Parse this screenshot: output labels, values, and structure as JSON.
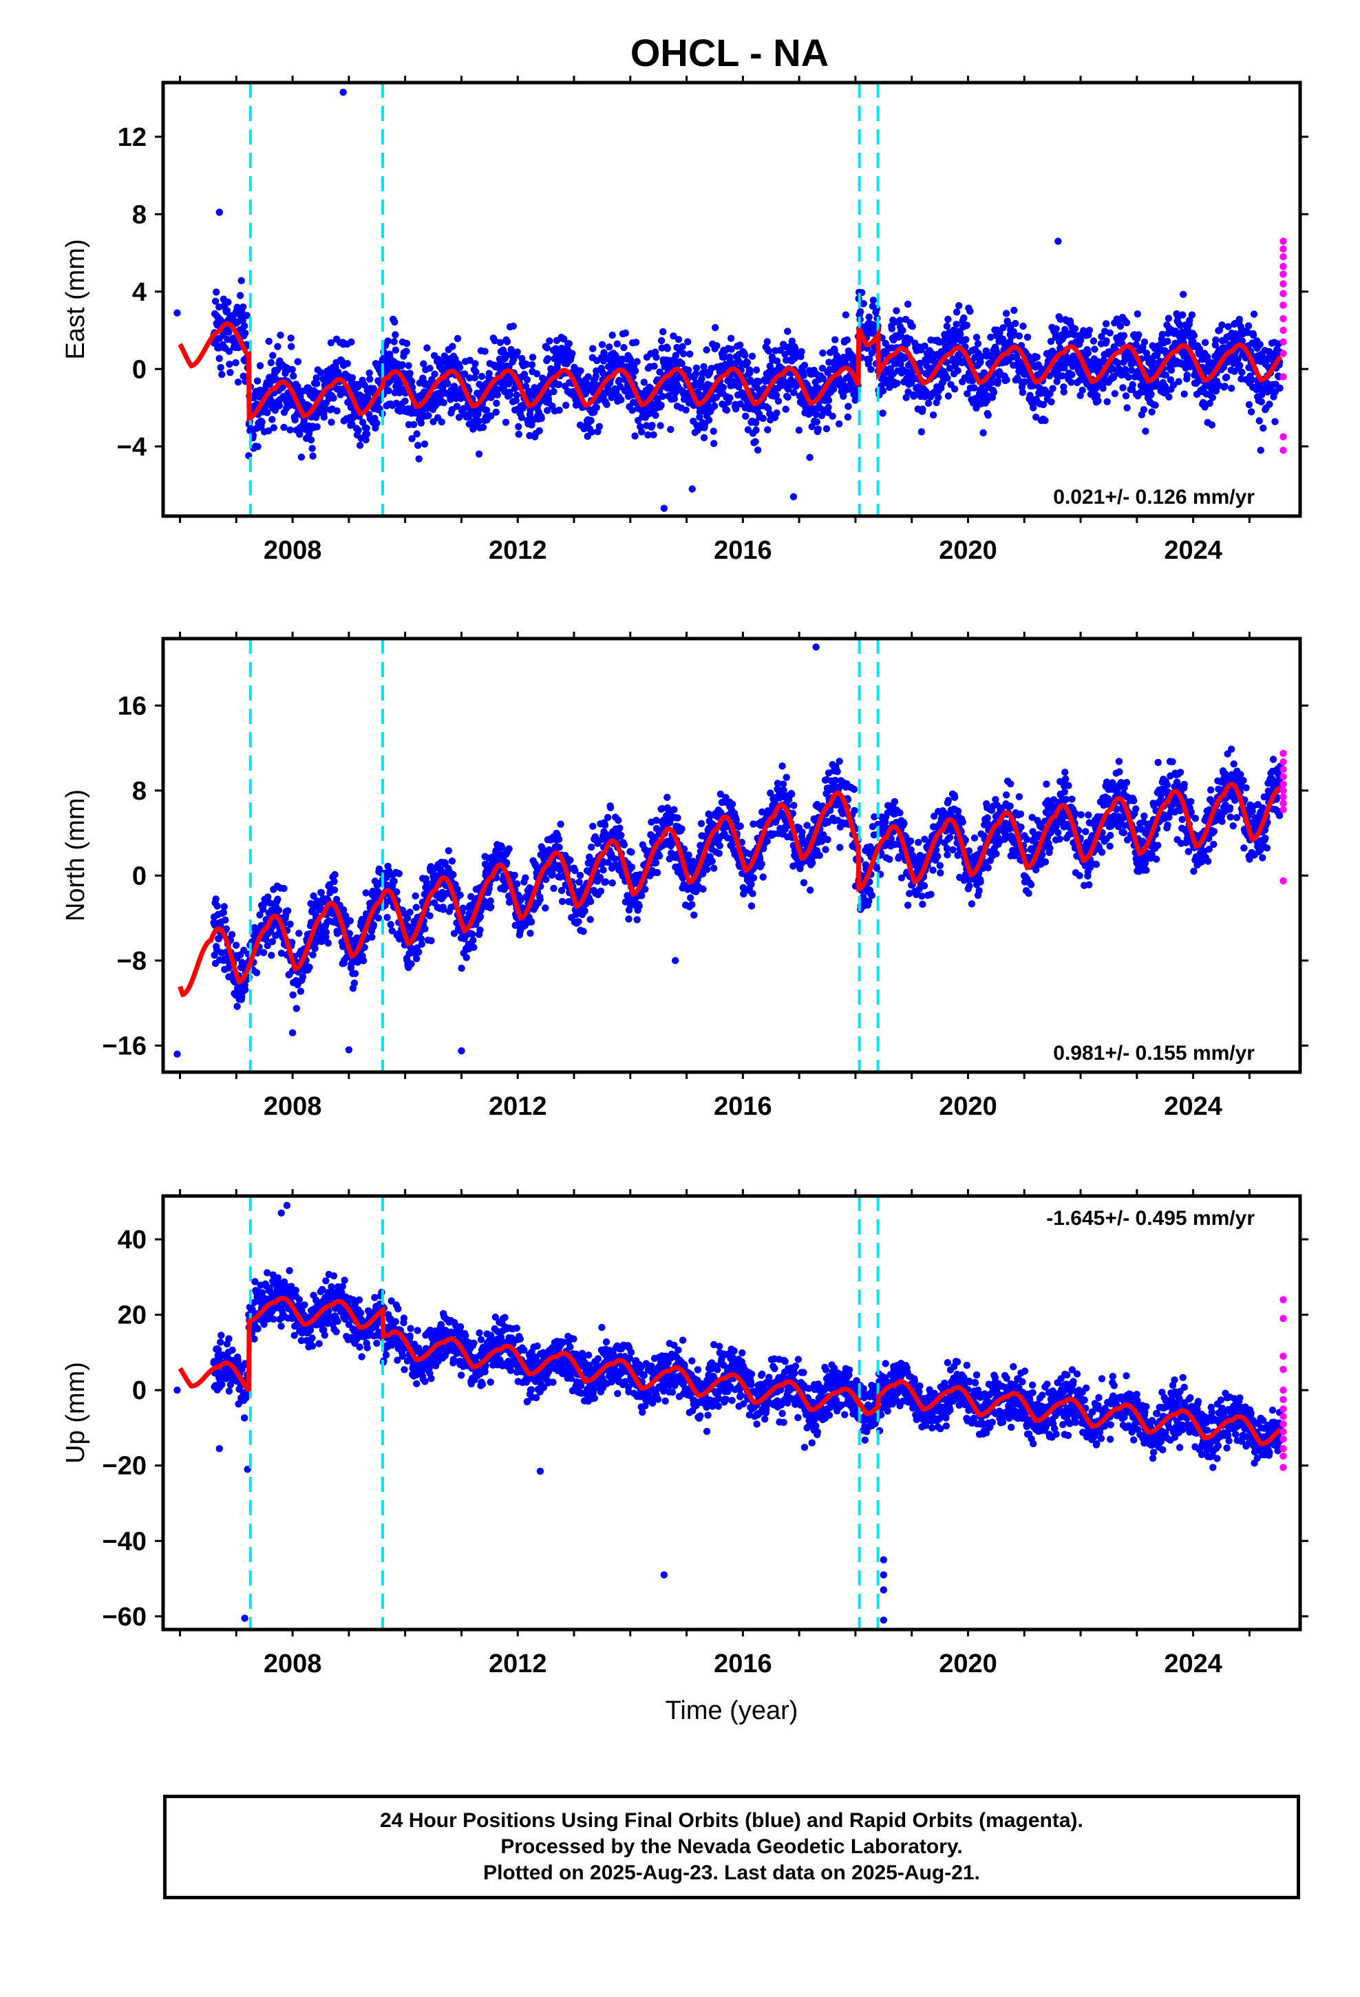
{
  "chart_data": [
    {
      "type": "scatter",
      "title": "OHCL - NA",
      "ylabel": "East (mm)",
      "xlabel": "",
      "xlim": [
        2005.7,
        2025.9
      ],
      "ylim": [
        -7.6,
        14.8
      ],
      "yticks": [
        -4,
        0,
        4,
        8,
        12
      ],
      "xticks": [
        2008,
        2012,
        2016,
        2020,
        2024
      ],
      "rate_label": "0.021+/- 0.126 mm/yr",
      "rate_position": "bottom-right",
      "model": {
        "segments": [
          [
            2006.0,
            2007.22,
            0.8,
            1.5
          ],
          [
            2007.22,
            2009.6,
            -1.8,
            -1.5
          ],
          [
            2009.6,
            2018.05,
            -1.2,
            -1.0
          ],
          [
            2018.05,
            2018.4,
            2.0,
            2.0
          ],
          [
            2018.4,
            2025.55,
            0.0,
            0.2
          ]
        ],
        "amplitude": 1.5,
        "phase_year": 0.7
      },
      "noise": 1.2,
      "outliers": [
        {
          "x": 2008.9,
          "y": 14.3
        },
        {
          "x": 2006.7,
          "y": 8.1
        },
        {
          "x": 2014.6,
          "y": -7.2
        },
        {
          "x": 2015.1,
          "y": -6.2
        },
        {
          "x": 2016.9,
          "y": -6.6
        },
        {
          "x": 2021.6,
          "y": 6.6
        },
        {
          "x": 2025.2,
          "y": -4.2
        },
        {
          "x": 2005.95,
          "y": 2.9
        }
      ],
      "offsets": [
        2007.25,
        2009.6,
        2018.07,
        2018.4
      ],
      "rapid": {
        "x": 2025.6,
        "values": [
          6.6,
          6.2,
          5.8,
          5.3,
          4.9,
          4.4,
          3.9,
          3.3,
          2.6,
          2.0,
          1.4,
          0.8,
          -0.4,
          -3.5,
          -4.2
        ]
      },
      "series": [
        {
          "name": "Final Orbits",
          "color": "#0000ff"
        },
        {
          "name": "Rapid Orbits",
          "color": "#ff00ff"
        },
        {
          "name": "",
          "color": "#ff0000"
        }
      ]
    },
    {
      "type": "scatter",
      "title": "",
      "ylabel": "North (mm)",
      "xlabel": "",
      "xlim": [
        2005.7,
        2025.9
      ],
      "ylim": [
        -18.5,
        22.3
      ],
      "yticks": [
        -16,
        -8,
        0,
        8,
        16
      ],
      "xticks": [
        2008,
        2012,
        2016,
        2020,
        2024
      ],
      "rate_label": "0.981+/- 0.155 mm/yr",
      "rate_position": "bottom-right",
      "model": {
        "segments": [
          [
            2006.0,
            2012.0,
            -9.0,
            -1.8
          ],
          [
            2012.0,
            2018.05,
            -1.8,
            5.0
          ],
          [
            2018.05,
            2025.55,
            1.0,
            6.0
          ]
        ],
        "amplitude": 4.5,
        "phase_year": 0.55
      },
      "noise": 1.8,
      "outliers": [
        {
          "x": 2005.95,
          "y": -16.8
        },
        {
          "x": 2009.0,
          "y": -16.4
        },
        {
          "x": 2011.0,
          "y": -16.5
        },
        {
          "x": 2017.3,
          "y": 21.5
        },
        {
          "x": 2014.8,
          "y": -8.0
        },
        {
          "x": 2008.0,
          "y": -14.8
        }
      ],
      "offsets": [
        2007.25,
        2009.6,
        2018.07,
        2018.4
      ],
      "rapid": {
        "x": 2025.6,
        "values": [
          11.5,
          10.7,
          10.0,
          9.3,
          8.6,
          8.0,
          7.4,
          6.8,
          6.2,
          -0.5
        ]
      },
      "series": [
        {
          "name": "Final Orbits",
          "color": "#0000ff"
        },
        {
          "name": "Rapid Orbits",
          "color": "#ff00ff"
        },
        {
          "name": "",
          "color": "#ff0000"
        }
      ]
    },
    {
      "type": "scatter",
      "title": "",
      "ylabel": "Up (mm)",
      "xlabel": "Time (year)",
      "xlim": [
        2005.7,
        2025.9
      ],
      "ylim": [
        -63.5,
        51.5
      ],
      "yticks": [
        -60,
        -40,
        -20,
        0,
        20,
        40
      ],
      "xticks": [
        2008,
        2012,
        2016,
        2020,
        2024
      ],
      "rate_label": "-1.645+/- 0.495 mm/yr",
      "rate_position": "top-right",
      "model": {
        "segments": [
          [
            2006.0,
            2007.22,
            4.0,
            3.0
          ],
          [
            2007.22,
            2009.6,
            21.0,
            19.0
          ],
          [
            2009.6,
            2018.05,
            12.0,
            -4.0
          ],
          [
            2018.05,
            2018.4,
            -3.5,
            -3.5
          ],
          [
            2018.4,
            2025.55,
            -1.0,
            -12.0
          ]
        ],
        "amplitude": 5.5,
        "phase_year": 0.7
      },
      "noise": 4.2,
      "outliers": [
        {
          "x": 2007.15,
          "y": -60.5
        },
        {
          "x": 2018.5,
          "y": -45.0
        },
        {
          "x": 2018.5,
          "y": -49.0
        },
        {
          "x": 2018.5,
          "y": -53.0
        },
        {
          "x": 2018.5,
          "y": -61.0
        },
        {
          "x": 2014.6,
          "y": -49.0
        },
        {
          "x": 2007.2,
          "y": -21.0
        },
        {
          "x": 2006.7,
          "y": -15.5
        },
        {
          "x": 2012.4,
          "y": -21.5
        },
        {
          "x": 2007.8,
          "y": 47.0
        },
        {
          "x": 2007.9,
          "y": 49.0
        },
        {
          "x": 2005.95,
          "y": 0.0
        }
      ],
      "offsets": [
        2007.25,
        2009.6,
        2018.07,
        2018.4
      ],
      "rapid": {
        "x": 2025.6,
        "values": [
          24.0,
          19.0,
          9.0,
          5.5,
          0.0,
          -2.5,
          -5.0,
          -7.0,
          -9.0,
          -11.0,
          -13.0,
          -15.5,
          -17.5,
          -20.5
        ]
      },
      "series": [
        {
          "name": "Final Orbits",
          "color": "#0000ff"
        },
        {
          "name": "Rapid Orbits",
          "color": "#ff00ff"
        },
        {
          "name": "",
          "color": "#ff0000"
        }
      ]
    }
  ],
  "footer": {
    "line1": "24 Hour Positions Using Final Orbits (blue) and Rapid Orbits (magenta).",
    "line2": "Processed by the Nevada Geodetic Laboratory.",
    "line3": "Plotted on 2025-Aug-23. Last data on 2025-Aug-21."
  },
  "colors": {
    "final": "#0000ff",
    "rapid": "#ff00ff",
    "model": "#ff0000",
    "offset": "#00e5ee"
  }
}
